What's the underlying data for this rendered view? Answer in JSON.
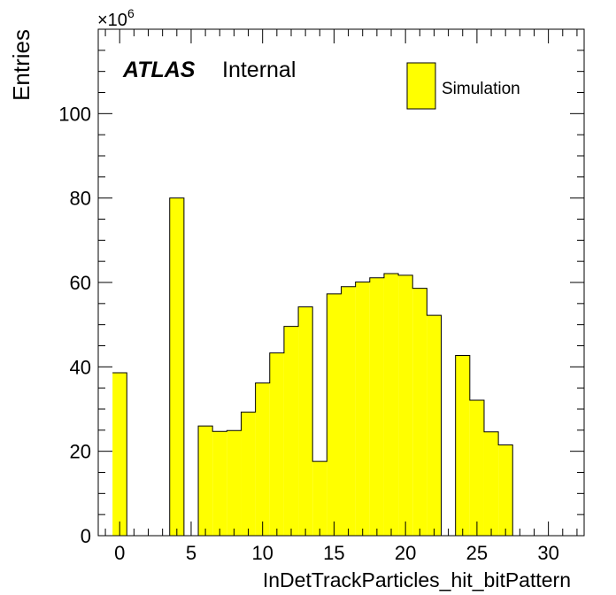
{
  "chart_data": {
    "type": "bar",
    "xlabel": "InDetTrackParticles_hit_bitPattern",
    "ylabel": "Entries",
    "y_multiplier_base": "×10",
    "y_multiplier_exp": "6",
    "xlim": [
      -1.5,
      32.5
    ],
    "ylim": [
      0,
      120
    ],
    "x_ticks": [
      0,
      5,
      10,
      15,
      20,
      25,
      30
    ],
    "y_ticks": [
      0,
      20,
      40,
      60,
      80,
      100
    ],
    "x_tick_labels": [
      "0",
      "5",
      "10",
      "15",
      "20",
      "25",
      "30"
    ],
    "y_tick_labels": [
      "0",
      "20",
      "40",
      "60",
      "80",
      "100"
    ],
    "fill_color": "#ffff00",
    "line_color": "#000000",
    "series": [
      {
        "name": "Simulation",
        "bins": [
          {
            "x": 0,
            "value": 38.6
          },
          {
            "x": 1,
            "value": 0
          },
          {
            "x": 2,
            "value": 0
          },
          {
            "x": 3,
            "value": 0
          },
          {
            "x": 4,
            "value": 80.0
          },
          {
            "x": 5,
            "value": 0
          },
          {
            "x": 6,
            "value": 26.0
          },
          {
            "x": 7,
            "value": 24.7
          },
          {
            "x": 8,
            "value": 24.9
          },
          {
            "x": 9,
            "value": 29.3
          },
          {
            "x": 10,
            "value": 36.2
          },
          {
            "x": 11,
            "value": 43.3
          },
          {
            "x": 12,
            "value": 49.6
          },
          {
            "x": 13,
            "value": 54.2
          },
          {
            "x": 14,
            "value": 17.6
          },
          {
            "x": 15,
            "value": 57.3
          },
          {
            "x": 16,
            "value": 59.0
          },
          {
            "x": 17,
            "value": 60.1
          },
          {
            "x": 18,
            "value": 61.1
          },
          {
            "x": 19,
            "value": 62.1
          },
          {
            "x": 20,
            "value": 61.7
          },
          {
            "x": 21,
            "value": 58.6
          },
          {
            "x": 22,
            "value": 52.2
          },
          {
            "x": 23,
            "value": 0
          },
          {
            "x": 24,
            "value": 42.7
          },
          {
            "x": 25,
            "value": 32.1
          },
          {
            "x": 26,
            "value": 24.6
          },
          {
            "x": 27,
            "value": 21.5
          },
          {
            "x": 28,
            "value": 0
          },
          {
            "x": 29,
            "value": 0
          },
          {
            "x": 30,
            "value": 0
          },
          {
            "x": 31,
            "value": 0
          }
        ]
      }
    ],
    "annotations": {
      "atlas_label": "ATLAS",
      "atlas_status": "Internal"
    },
    "legend": {
      "placement": "top-right",
      "entries": [
        "Simulation"
      ]
    }
  }
}
